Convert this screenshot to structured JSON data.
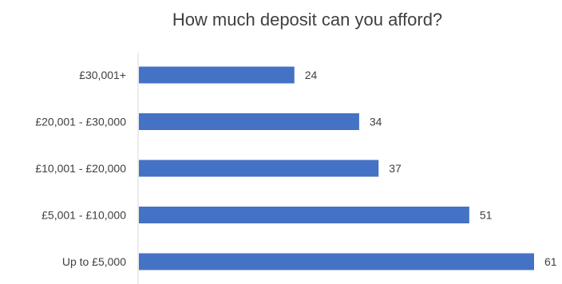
{
  "chart_data": {
    "type": "bar",
    "orientation": "horizontal",
    "title": "How much deposit can you afford?",
    "categories": [
      "£30,001+",
      "£20,001 - £30,000",
      "£10,001 - £20,000",
      "£5,001 - £10,000",
      "Up to £5,000"
    ],
    "values": [
      24,
      34,
      37,
      51,
      61
    ],
    "data_labels": [
      "24",
      "34",
      "37",
      "51",
      "61"
    ],
    "xlim": [
      0,
      61
    ],
    "grid": false,
    "legend": "none",
    "bar_color": "#4472C4",
    "text_color": "#404040",
    "axis_color": "#D9D9D9"
  }
}
